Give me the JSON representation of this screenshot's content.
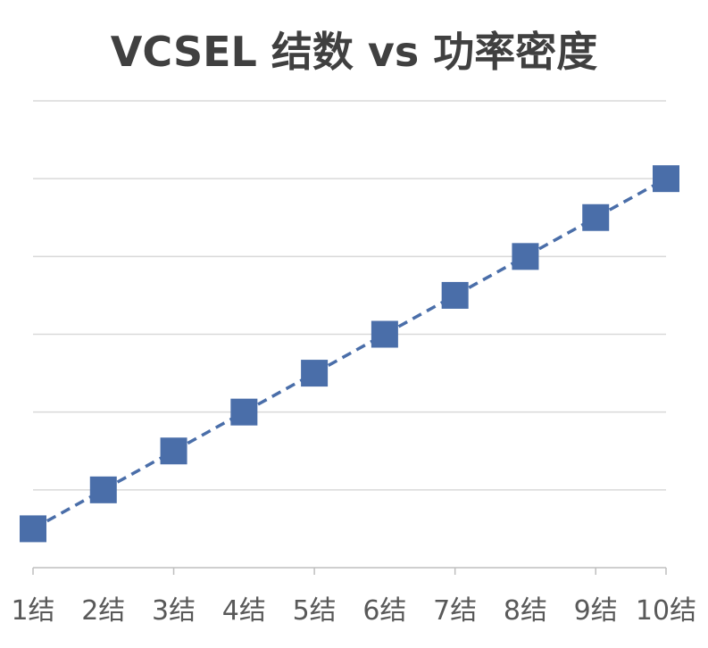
{
  "chart_data": {
    "type": "line",
    "title": "VCSEL 结数 vs 功率密度",
    "xlabel": "",
    "ylabel": "",
    "categories": [
      "1结",
      "2结",
      "3结",
      "4结",
      "5结",
      "6结",
      "7结",
      "8结",
      "9结",
      "10结"
    ],
    "series": [
      {
        "values": [
          1,
          2,
          3,
          4,
          5,
          6,
          7,
          8,
          9,
          10
        ],
        "color": "#4a6ea9",
        "line_style": "dashed",
        "marker": "square"
      }
    ],
    "ylim": [
      0,
      12
    ],
    "y_gridlines": [
      2,
      4,
      6,
      8,
      10,
      12
    ],
    "y_tick_labels_shown": false,
    "grid": true,
    "legend": "none",
    "gridline_color": "#d9d9d9",
    "axis_color": "#bfbfbf"
  }
}
